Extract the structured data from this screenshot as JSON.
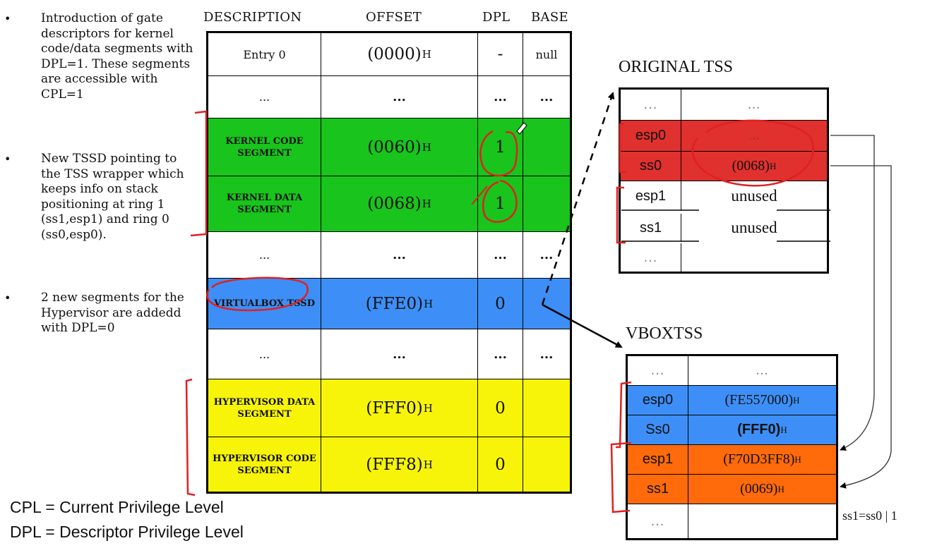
{
  "bullets": [
    {
      "text": "Introduction of gate descriptors for kernel code/data segments with DPL=1. These segments are accessible with  CPL=1"
    },
    {
      "text": "New TSSD pointing to the  TSS wrapper which keeps info on stack positioning at ring 1 (ss1,esp1) and ring 0 (ss0,esp0)."
    },
    {
      "text": "2 new segments for the Hypervisor are addedd with DPL=0"
    }
  ],
  "bullet_symbol": "•",
  "gdt": {
    "headers": {
      "description": "DESCRIPTION",
      "offset": "OFFSET",
      "dpl": "DPL",
      "base": "BASE"
    },
    "rows": [
      {
        "desc": "Entry 0",
        "offset": "(0000)",
        "offset_sub": "H",
        "dpl": "-",
        "base": "null",
        "color": "#ffffff"
      },
      {
        "desc": "...",
        "offset": "...",
        "offset_sub": "",
        "dpl": "...",
        "base": "...",
        "color": "#ffffff"
      },
      {
        "desc": "KERNEL CODE SEGMENT",
        "offset": "(0060)",
        "offset_sub": "H",
        "dpl": "1",
        "base": "",
        "color": "#19c41c"
      },
      {
        "desc": "KERNEL DATA SEGMENT",
        "offset": "(0068)",
        "offset_sub": "H",
        "dpl": "1",
        "base": "",
        "color": "#19c41c"
      },
      {
        "desc": "...",
        "offset": "...",
        "offset_sub": "",
        "dpl": "...",
        "base": "...",
        "color": "#ffffff"
      },
      {
        "desc": "VIRTUALBOX TSSD",
        "offset": "(FFE0) ",
        "offset_sub": "H",
        "dpl": "0",
        "base": "",
        "color": "#3d8ff7"
      },
      {
        "desc": "...",
        "offset": "...",
        "offset_sub": "",
        "dpl": "...",
        "base": "...",
        "color": "#ffffff"
      },
      {
        "desc": "HYPERVISOR DATA SEGMENT",
        "offset": "(FFF0)",
        "offset_sub": "H",
        "dpl": "0",
        "base": "",
        "color": "#f7f40a"
      },
      {
        "desc": "HYPERVISOR CODE SEGMENT",
        "offset": "(FFF8)",
        "offset_sub": "H",
        "dpl": "0",
        "base": "",
        "color": "#f7f40a"
      }
    ]
  },
  "original_tss": {
    "title": "ORIGINAL TSS",
    "rows": [
      {
        "key": "...",
        "val": "...",
        "val_sub": "",
        "color": "#ffffff"
      },
      {
        "key": "esp0",
        "val": "...",
        "val_sub": "",
        "color": "#e0312e"
      },
      {
        "key": "ss0",
        "val": "(0068) ",
        "val_sub": "H",
        "color": "#e0312e"
      },
      {
        "key": "esp1",
        "val": "unused",
        "val_sub": "",
        "color": "#ffffff"
      },
      {
        "key": "ss1",
        "val": "unused",
        "val_sub": "",
        "color": "#ffffff"
      },
      {
        "key": "...",
        "val": "",
        "val_sub": "",
        "color": "#ffffff"
      }
    ]
  },
  "vbox_tss": {
    "title": "VBOXTSS",
    "rows": [
      {
        "key": "...",
        "val": "...",
        "val_sub": "",
        "color": "#ffffff"
      },
      {
        "key": "esp0",
        "val": "(FE557000) ",
        "val_sub": "H",
        "color": "#3d8ff7"
      },
      {
        "key": "Ss0",
        "val": "(FFF0) ",
        "val_sub": "H",
        "color": "#3d8ff7"
      },
      {
        "key": "esp1",
        "val": "(F70D3FF8) ",
        "val_sub": "H",
        "color": "#ff6a0a"
      },
      {
        "key": "ss1",
        "val": "(0069) ",
        "val_sub": "H",
        "color": "#ff6a0a"
      },
      {
        "key": "...",
        "val": "",
        "val_sub": "",
        "color": "#ffffff"
      }
    ]
  },
  "note": "ss1=ss0 | 1",
  "legend": {
    "cpl": "CPL = Current Privilege Level",
    "dpl": "DPL = Descriptor Privilege Level"
  }
}
